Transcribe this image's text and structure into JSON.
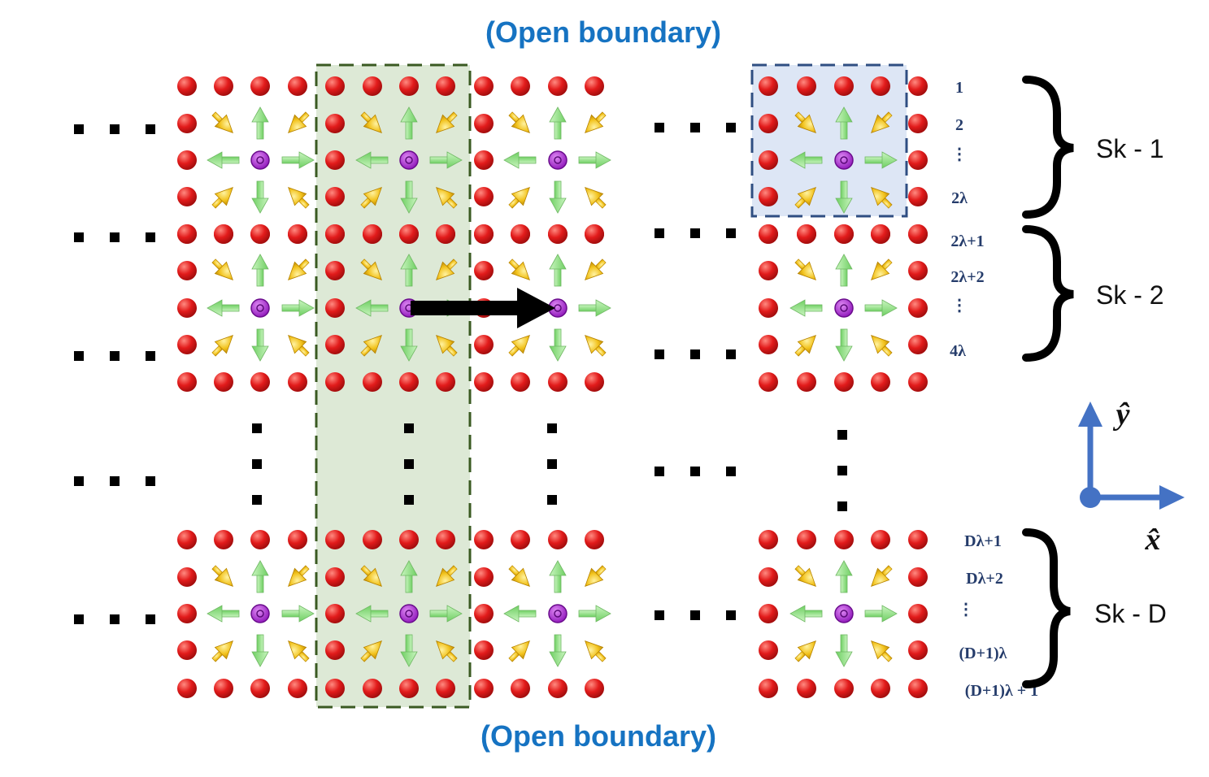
{
  "boundary": {
    "top": "(Open boundary)",
    "bottom": "(Open boundary)"
  },
  "row_labels": [
    "1",
    "2",
    "⋮",
    "2λ",
    "2λ+1",
    "2λ+2",
    "⋮",
    "4λ",
    "Dλ+1",
    "Dλ+2",
    "⋮",
    "(D+1)λ",
    "(D+1)λ + 1"
  ],
  "skyrmion_labels": [
    "Sk - 1",
    "Sk - 2",
    "Sk - D"
  ],
  "axes": {
    "x": "x̂",
    "y": "ŷ"
  },
  "colors": {
    "boundary_text": "#1673c2",
    "row_label": "#253c6b",
    "atom": "#e21b1b",
    "core": "#a020d0",
    "green_arrow": "#88e07a",
    "yellow_arrow": "#f2c21c",
    "green_box": "#dde9d6",
    "green_box_border": "#3a5a22",
    "blue_box": "#dde6f5",
    "blue_box_border": "#2f4e82",
    "axis": "#4472c4"
  },
  "icons": [
    "red-atom",
    "purple-core",
    "green-arrow",
    "yellow-spin-arrow",
    "black-shift-arrow",
    "axis-arrow",
    "curly-brace"
  ]
}
